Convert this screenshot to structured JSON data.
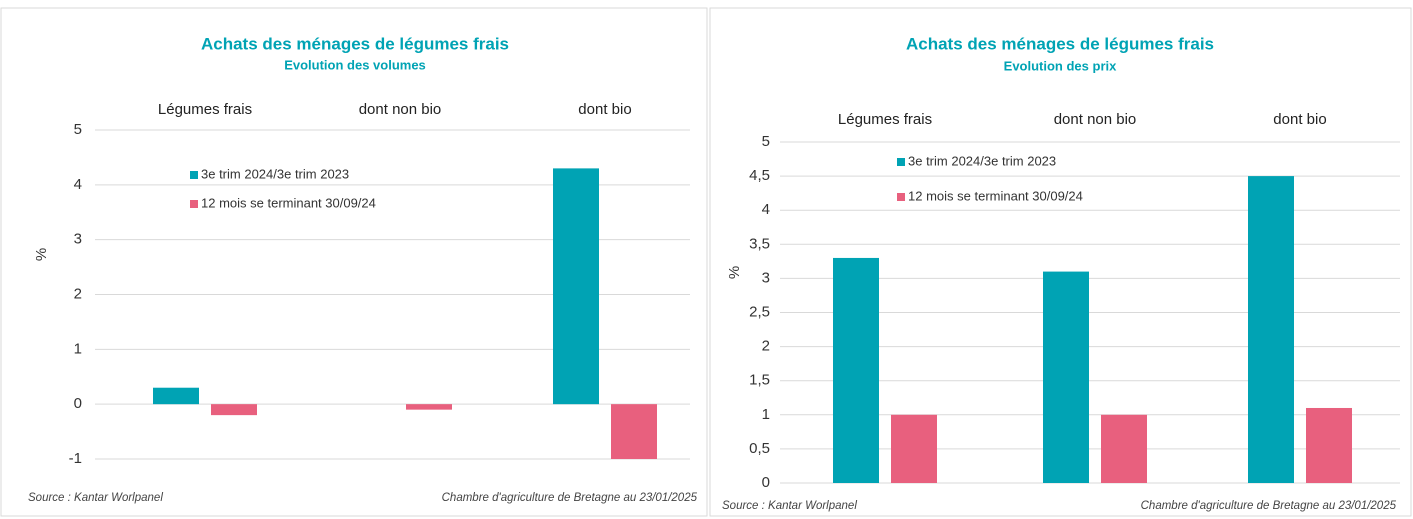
{
  "chart_data": [
    {
      "type": "bar",
      "title": "Achats des ménages de légumes frais",
      "subtitle": "Evolution des volumes",
      "y_label": "%",
      "categories": [
        "Légumes frais",
        "dont non bio",
        "dont bio"
      ],
      "series": [
        {
          "name": "3e trim 2024/3e trim 2023",
          "color": "#00a3b4",
          "values": [
            0.3,
            0,
            4.3
          ]
        },
        {
          "name": "12 mois se terminant 30/09/24",
          "color": "#e8607e",
          "values": [
            -0.2,
            -0.1,
            -1.0
          ]
        }
      ],
      "ylim": [
        -1,
        5
      ],
      "yticks": [
        -1,
        0,
        1,
        2,
        3,
        4,
        5
      ],
      "grid": true,
      "source": "Source : Kantar Worlpanel",
      "credit": "Chambre d'agriculture de Bretagne au 23/01/2025"
    },
    {
      "type": "bar",
      "title": "Achats des ménages de légumes frais",
      "subtitle": "Evolution des prix",
      "y_label": "%",
      "categories": [
        "Légumes frais",
        "dont non bio",
        "dont bio"
      ],
      "series": [
        {
          "name": "3e trim 2024/3e trim 2023",
          "color": "#00a3b4",
          "values": [
            3.3,
            3.1,
            4.5
          ]
        },
        {
          "name": "12 mois se terminant 30/09/24",
          "color": "#e8607e",
          "values": [
            1,
            1,
            1.1
          ]
        }
      ],
      "ylim": [
        0,
        5
      ],
      "yticks": [
        0,
        {
          "value": 0.5,
          "label": "0,5"
        },
        1,
        {
          "value": 1.5,
          "label": "1,5"
        },
        2,
        {
          "value": 2.5,
          "label": "2,5"
        },
        3,
        {
          "value": 3.5,
          "label": "3,5"
        },
        4,
        {
          "value": 4.5,
          "label": "4,5"
        },
        5
      ],
      "grid": true,
      "source": "Source : Kantar Worlpanel",
      "credit": "Chambre d'agriculture de Bretagne au 23/01/2025"
    }
  ]
}
